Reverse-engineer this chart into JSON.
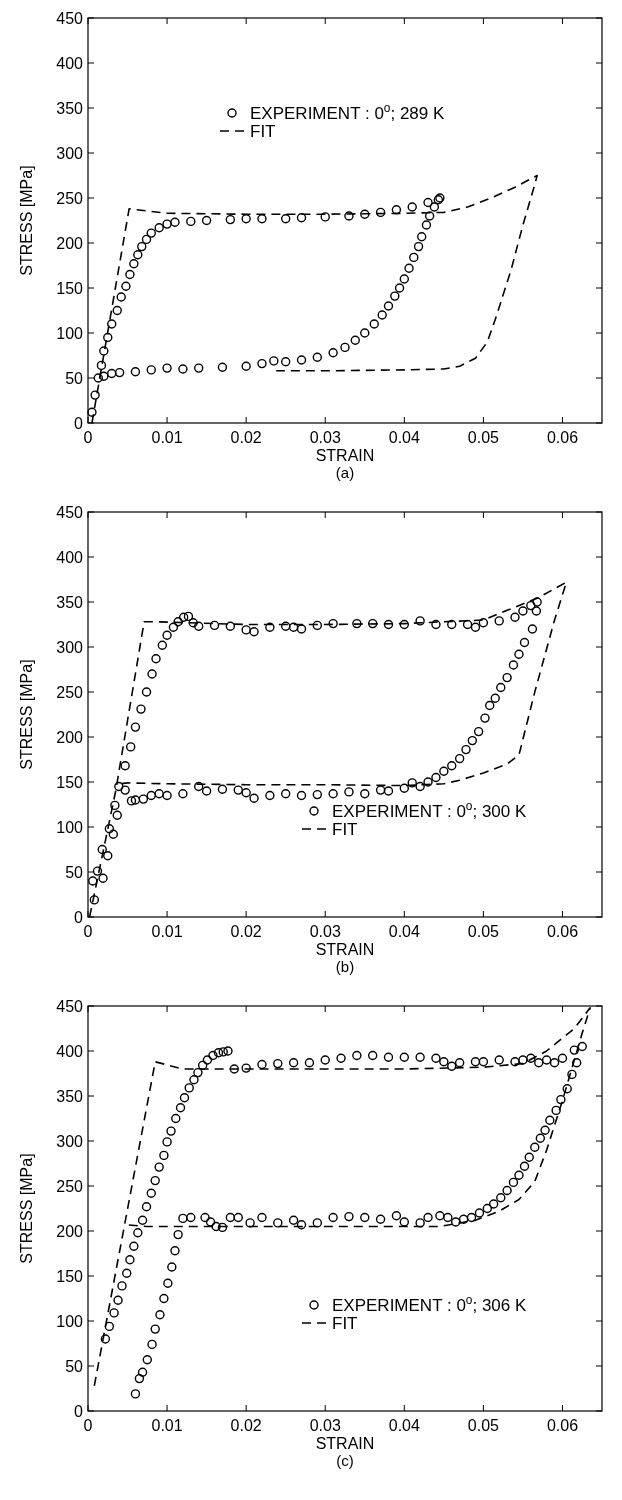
{
  "chart_data": [
    {
      "type": "scatter",
      "xlabel": "STRAIN",
      "ylabel": "STRESS [MPa]",
      "annotations": [
        "(a)"
      ],
      "xlim": [
        0,
        0.065
      ],
      "ylim": [
        0,
        450
      ],
      "xticks": [
        0,
        0.01,
        0.02,
        0.03,
        0.04,
        0.05,
        0.06
      ],
      "yticks": [
        0,
        50,
        100,
        150,
        200,
        250,
        300,
        350,
        400,
        450
      ],
      "grid": false,
      "legend": "top",
      "series": [
        {
          "name": "EXPERIMENT :  0$^{o}$; 289 K",
          "marker": "circle",
          "color": "#000000",
          "x": [
            0.0005,
            0.0009,
            0.0013,
            0.0017,
            0.002,
            0.0025,
            0.003,
            0.0037,
            0.0042,
            0.0048,
            0.0053,
            0.0058,
            0.0063,
            0.0068,
            0.0074,
            0.008,
            0.009,
            0.01,
            0.011,
            0.013,
            0.015,
            0.018,
            0.02,
            0.022,
            0.025,
            0.027,
            0.03,
            0.033,
            0.035,
            0.037,
            0.039,
            0.041,
            0.043,
            0.0445,
            0.0443,
            0.0438,
            0.0432,
            0.0428,
            0.0422,
            0.0418,
            0.0412,
            0.0406,
            0.04,
            0.0394,
            0.0388,
            0.038,
            0.0372,
            0.0362,
            0.035,
            0.0338,
            0.0325,
            0.031,
            0.029,
            0.027,
            0.025,
            0.0235,
            0.022,
            0.02,
            0.017,
            0.014,
            0.012,
            0.01,
            0.008,
            0.006,
            0.004,
            0.003,
            0.002
          ],
          "values": [
            12,
            31,
            50,
            64,
            80,
            95,
            110,
            125,
            140,
            152,
            165,
            177,
            187,
            196,
            204,
            211,
            217,
            221,
            223,
            224,
            225,
            226,
            227,
            227,
            227,
            228,
            229,
            230,
            232,
            234,
            237,
            240,
            245,
            250,
            248,
            240,
            230,
            220,
            207,
            196,
            184,
            172,
            160,
            150,
            141,
            130,
            120,
            110,
            100,
            92,
            84,
            78,
            73,
            70,
            68,
            69,
            66,
            63,
            62,
            61,
            60,
            61,
            59,
            57,
            56,
            55,
            52
          ]
        },
        {
          "name": "FIT",
          "type": "line",
          "line_style": "dashed",
          "color": "#000000",
          "x": [
            0.0005,
            0.0052,
            0.01,
            0.02,
            0.03,
            0.04,
            0.045,
            0.048,
            0.051,
            0.054,
            0.0568,
            0.0565,
            0.055,
            0.0535,
            0.0515,
            0.0505,
            0.049,
            0.047,
            0.045,
            0.04,
            0.03,
            0.0238
          ],
          "values": [
            0,
            238,
            233,
            232,
            232,
            233,
            234,
            240,
            250,
            262,
            275,
            265,
            220,
            170,
            115,
            90,
            72,
            63,
            60,
            59,
            58,
            58
          ]
        }
      ]
    },
    {
      "type": "scatter",
      "xlabel": "STRAIN",
      "ylabel": "STRESS [MPa]",
      "annotations": [
        "(b)"
      ],
      "xlim": [
        0,
        0.065
      ],
      "ylim": [
        0,
        450
      ],
      "xticks": [
        0,
        0.01,
        0.02,
        0.03,
        0.04,
        0.05,
        0.06
      ],
      "yticks": [
        0,
        50,
        100,
        150,
        200,
        250,
        300,
        350,
        400,
        450
      ],
      "grid": false,
      "legend": "bottom right",
      "series": [
        {
          "name": "EXPERIMENT :  0$^{o}$; 300 K",
          "marker": "circle",
          "color": "#000000",
          "x": [
            0.0008,
            0.0006,
            0.0012,
            0.0019,
            0.0018,
            0.0025,
            0.0027,
            0.0032,
            0.0034,
            0.0037,
            0.0039,
            0.0047,
            0.0047,
            0.0054,
            0.006,
            0.0067,
            0.0074,
            0.0081,
            0.0086,
            0.0094,
            0.01,
            0.0108,
            0.0114,
            0.0121,
            0.0127,
            0.0133,
            0.014,
            0.016,
            0.018,
            0.02,
            0.021,
            0.023,
            0.025,
            0.026,
            0.027,
            0.029,
            0.031,
            0.034,
            0.036,
            0.038,
            0.04,
            0.042,
            0.044,
            0.046,
            0.048,
            0.049,
            0.05,
            0.052,
            0.054,
            0.055,
            0.056,
            0.0568,
            0.0567,
            0.0562,
            0.0552,
            0.0545,
            0.0538,
            0.053,
            0.0522,
            0.0515,
            0.0508,
            0.0502,
            0.0494,
            0.0486,
            0.0478,
            0.047,
            0.046,
            0.045,
            0.044,
            0.043,
            0.042,
            0.041,
            0.04,
            0.038,
            0.037,
            0.035,
            0.033,
            0.031,
            0.029,
            0.027,
            0.025,
            0.023,
            0.021,
            0.02,
            0.019,
            0.017,
            0.015,
            0.014,
            0.012,
            0.01,
            0.009,
            0.008,
            0.007,
            0.006,
            0.0055
          ],
          "values": [
            19,
            40,
            51,
            43,
            75,
            68,
            98,
            92,
            124,
            113,
            145,
            141,
            168,
            189,
            211,
            231,
            250,
            270,
            287,
            302,
            313,
            322,
            328,
            333,
            334,
            327,
            323,
            324,
            323,
            319,
            317,
            322,
            323,
            322,
            320,
            324,
            326,
            326,
            326,
            325,
            325,
            329,
            325,
            325,
            325,
            322,
            327,
            329,
            333,
            340,
            346,
            350,
            340,
            320,
            305,
            292,
            280,
            266,
            255,
            243,
            235,
            221,
            206,
            196,
            186,
            176,
            168,
            162,
            155,
            150,
            145,
            149,
            143,
            140,
            141,
            137,
            139,
            137,
            136,
            135,
            137,
            135,
            132,
            138,
            141,
            142,
            140,
            145,
            137,
            135,
            137,
            135,
            131,
            130,
            129
          ]
        },
        {
          "name": "FIT",
          "type": "line",
          "line_style": "dashed",
          "color": "#000000",
          "x": [
            0.0002,
            0.0035,
            0.0071,
            0.0087,
            0.02,
            0.03,
            0.04,
            0.05,
            0.057,
            0.0605,
            0.059,
            0.0565,
            0.0545,
            0.053,
            0.05,
            0.047,
            0.045,
            0.04,
            0.03,
            0.02,
            0.01,
            0.005,
            0.004
          ],
          "values": [
            0,
            140,
            328,
            328,
            325,
            325,
            326,
            330,
            355,
            372,
            330,
            250,
            180,
            170,
            160,
            152,
            148,
            146,
            147,
            147,
            148,
            149,
            148
          ]
        }
      ]
    },
    {
      "type": "scatter",
      "xlabel": "STRAIN",
      "ylabel": "STRESS [MPa]",
      "annotations": [
        "(c)"
      ],
      "xlim": [
        0,
        0.065
      ],
      "ylim": [
        0,
        450
      ],
      "xticks": [
        0,
        0.01,
        0.02,
        0.03,
        0.04,
        0.05,
        0.06
      ],
      "yticks": [
        0,
        50,
        100,
        150,
        200,
        250,
        300,
        350,
        400,
        450
      ],
      "grid": false,
      "legend": "bottom right",
      "series": [
        {
          "name": "EXPERIMENT :  0$^{o}$; 306 K",
          "marker": "circle",
          "color": "#000000",
          "x": [
            0.0022,
            0.0027,
            0.0033,
            0.0038,
            0.0043,
            0.0049,
            0.0053,
            0.0058,
            0.0063,
            0.0069,
            0.0074,
            0.008,
            0.0085,
            0.009,
            0.0096,
            0.01,
            0.0105,
            0.0111,
            0.0117,
            0.0122,
            0.0128,
            0.0134,
            0.0139,
            0.0145,
            0.0151,
            0.0158,
            0.0165,
            0.0171,
            0.0177,
            0.0185,
            0.02,
            0.022,
            0.024,
            0.026,
            0.028,
            0.03,
            0.032,
            0.034,
            0.036,
            0.038,
            0.04,
            0.042,
            0.044,
            0.045,
            0.046,
            0.047,
            0.049,
            0.05,
            0.052,
            0.054,
            0.055,
            0.056,
            0.057,
            0.058,
            0.059,
            0.06,
            0.0615,
            0.0625,
            0.0618,
            0.0612,
            0.0606,
            0.0598,
            0.0592,
            0.0584,
            0.0578,
            0.0572,
            0.0565,
            0.0558,
            0.0552,
            0.0545,
            0.0538,
            0.053,
            0.0522,
            0.0513,
            0.0505,
            0.0495,
            0.0485,
            0.0475,
            0.0465,
            0.0455,
            0.0445,
            0.043,
            0.042,
            0.04,
            0.039,
            0.037,
            0.035,
            0.033,
            0.031,
            0.029,
            0.027,
            0.026,
            0.024,
            0.022,
            0.0205,
            0.019,
            0.018,
            0.017,
            0.0162,
            0.0155,
            0.0148,
            0.013,
            0.012,
            0.0114,
            0.011,
            0.0106,
            0.0101,
            0.0096,
            0.0091,
            0.0085,
            0.0081,
            0.0075,
            0.0069,
            0.0065,
            0.006
          ],
          "values": [
            80,
            94,
            109,
            123,
            139,
            153,
            168,
            183,
            198,
            212,
            227,
            242,
            256,
            271,
            284,
            299,
            311,
            325,
            337,
            348,
            359,
            368,
            376,
            384,
            390,
            395,
            398,
            399,
            400,
            380,
            381,
            385,
            386,
            387,
            387,
            390,
            392,
            395,
            395,
            393,
            393,
            393,
            392,
            388,
            383,
            387,
            388,
            388,
            390,
            388,
            390,
            392,
            387,
            390,
            387,
            392,
            401,
            405,
            387,
            374,
            358,
            346,
            334,
            323,
            312,
            303,
            293,
            282,
            272,
            262,
            254,
            245,
            237,
            230,
            225,
            220,
            215,
            213,
            210,
            215,
            217,
            215,
            209,
            210,
            217,
            213,
            215,
            216,
            215,
            209,
            207,
            212,
            209,
            215,
            209,
            215,
            215,
            204,
            205,
            210,
            215,
            215,
            214,
            196,
            178,
            160,
            142,
            125,
            107,
            91,
            74,
            57,
            43,
            36,
            19
          ]
        },
        {
          "name": "FIT",
          "type": "line",
          "line_style": "dashed",
          "color": "#000000",
          "x": [
            0.0008,
            0.0085,
            0.012,
            0.02,
            0.03,
            0.04,
            0.05,
            0.055,
            0.058,
            0.0615,
            0.0635,
            0.0625,
            0.06,
            0.058,
            0.0565,
            0.0545,
            0.052,
            0.049,
            0.0445,
            0.03,
            0.02,
            0.0075,
            0.0046
          ],
          "values": [
            28,
            388,
            380,
            380,
            380,
            380,
            382,
            386,
            400,
            425,
            448,
            420,
            345,
            290,
            255,
            235,
            222,
            212,
            205,
            205,
            205,
            205,
            207
          ]
        }
      ]
    }
  ]
}
